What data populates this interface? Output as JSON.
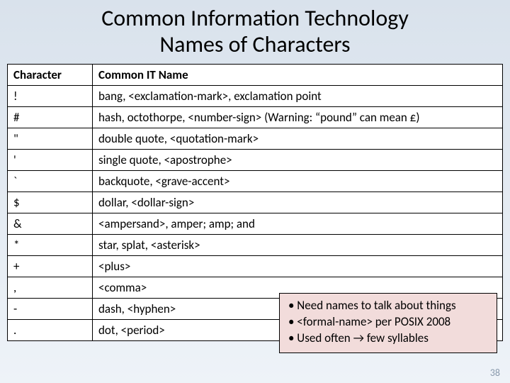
{
  "title_line1": "Common Information Technology",
  "title_line2": "Names of Characters",
  "table": {
    "columns": [
      "Character",
      "Common IT Name"
    ],
    "col_widths": [
      "120px",
      "auto"
    ],
    "header_bg": "#4f81bd",
    "rows": [
      [
        "!",
        "bang, <exclamation-mark>, exclamation point"
      ],
      [
        "#",
        "hash, octothorpe, <number-sign> (Warning:  “pound” can mean £)"
      ],
      [
        "\"",
        "double quote, <quotation-mark>"
      ],
      [
        "'",
        "single quote, <apostrophe>"
      ],
      [
        "`",
        "backquote, <grave-accent>"
      ],
      [
        "$",
        "dollar, <dollar-sign>"
      ],
      [
        "&",
        "<ampersand>, amper; amp; and"
      ],
      [
        "*",
        "star, splat, <asterisk>"
      ],
      [
        "+",
        "<plus>"
      ],
      [
        ",",
        "<comma>"
      ],
      [
        "-",
        "dash, <hyphen>"
      ],
      [
        ".",
        "dot, <period>"
      ]
    ]
  },
  "callout": {
    "bg": "#f2dcdb",
    "border": "#000000",
    "items": [
      "• Need names to talk about things",
      "• <formal-name> per POSIX 2008",
      "• Used often → few syllables"
    ]
  },
  "pagenum": "38",
  "colors": {
    "page_bg_top": "#d9e2ec",
    "page_bg_bottom": "#eef3f8",
    "text": "#000000",
    "pagenum": "#8a9aad"
  },
  "fontsize": {
    "title": 32,
    "cell": 17,
    "callout": 17,
    "pagenum": 14
  }
}
